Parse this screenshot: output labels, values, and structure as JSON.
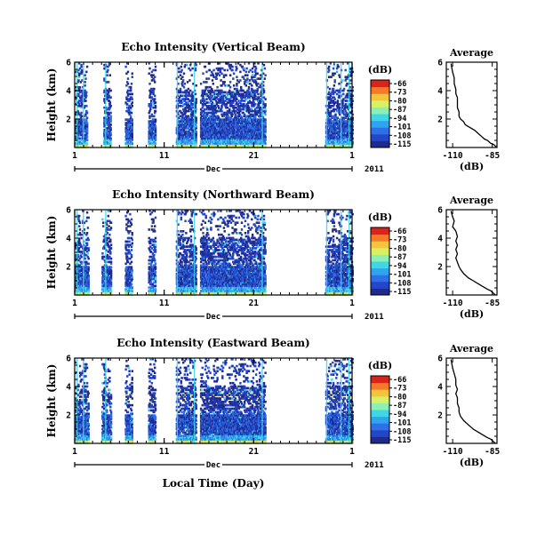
{
  "chart_data": [
    {
      "type": "heatmap",
      "title": "Echo Intensity (Vertical Beam)",
      "ylabel": "Height (km)",
      "ylim": [
        0,
        6
      ],
      "yticks": [
        2,
        4,
        6
      ],
      "xticks": [
        "1",
        "11",
        "21",
        "1"
      ],
      "month_label": "Dec",
      "year_label": "2011",
      "colorbar": {
        "unit": "(dB)",
        "ticks": [
          -66,
          -73,
          -80,
          -87,
          -94,
          -101,
          -108,
          -115
        ]
      },
      "colormap": [
        "#1f2a8c",
        "#2446c8",
        "#2f6fe8",
        "#2fa4ef",
        "#3fd6e6",
        "#8cf0b4",
        "#d8f064",
        "#f6c43c",
        "#f47a2a",
        "#d8241c"
      ],
      "active_day_ranges": [
        [
          1.0,
          2.3
        ],
        [
          4.2,
          5.0
        ],
        [
          6.6,
          7.4
        ],
        [
          9.2,
          10.0
        ],
        [
          12.3,
          14.5
        ],
        [
          15.0,
          22.2
        ],
        [
          29.0,
          32.0
        ]
      ]
    },
    {
      "type": "line",
      "title": "Average",
      "xlabel": "(dB)",
      "xlim": [
        -114,
        -82
      ],
      "xticks": [
        "-110",
        "-85"
      ],
      "ylim": [
        0,
        6
      ],
      "yticks": [
        2,
        4,
        6
      ],
      "x": [
        -111,
        -110,
        -109,
        -109,
        -108,
        -108,
        -107,
        -107,
        -107,
        -106,
        -106,
        -105,
        -103,
        -102,
        -99,
        -96,
        -94,
        -92,
        -90,
        -88,
        -86,
        -84,
        -83,
        -82
      ],
      "y": [
        5.9,
        5.3,
        4.9,
        4.5,
        4.1,
        3.8,
        3.5,
        3.1,
        2.8,
        2.5,
        2.2,
        2.0,
        1.8,
        1.6,
        1.4,
        1.2,
        1.0,
        0.8,
        0.6,
        0.5,
        0.3,
        0.2,
        0.1,
        0.0
      ]
    },
    {
      "type": "heatmap",
      "title": "Echo Intensity (Northward Beam)",
      "ylabel": "Height (km)",
      "ylim": [
        0,
        6
      ],
      "yticks": [
        2,
        4,
        6
      ],
      "xticks": [
        "1",
        "11",
        "21",
        "1"
      ],
      "month_label": "Dec",
      "year_label": "2011",
      "colorbar": {
        "unit": "(dB)",
        "ticks": [
          -66,
          -73,
          -80,
          -87,
          -94,
          -101,
          -108,
          -115
        ]
      },
      "colormap": [
        "#1f2a8c",
        "#2446c8",
        "#2f6fe8",
        "#2fa4ef",
        "#3fd6e6",
        "#8cf0b4",
        "#d8f064",
        "#f6c43c",
        "#f47a2a",
        "#d8241c"
      ],
      "active_day_ranges": [
        [
          1.0,
          2.5
        ],
        [
          4.0,
          5.0
        ],
        [
          6.6,
          7.4
        ],
        [
          9.2,
          10.0
        ],
        [
          12.3,
          14.5
        ],
        [
          15.0,
          22.2
        ],
        [
          29.0,
          32.0
        ]
      ]
    },
    {
      "type": "line",
      "title": "Average",
      "xlabel": "(dB)",
      "xlim": [
        -114,
        -82
      ],
      "xticks": [
        "-110",
        "-85"
      ],
      "ylim": [
        0,
        6
      ],
      "yticks": [
        2,
        4,
        6
      ],
      "x": [
        -111,
        -110,
        -109,
        -110,
        -108,
        -107,
        -108,
        -107,
        -108,
        -107,
        -108,
        -107,
        -106,
        -105,
        -103,
        -100,
        -97,
        -94,
        -91,
        -88,
        -86,
        -84,
        -83
      ],
      "y": [
        5.9,
        5.5,
        5.2,
        4.8,
        4.5,
        4.1,
        3.8,
        3.5,
        3.2,
        2.9,
        2.6,
        2.3,
        2.0,
        1.8,
        1.5,
        1.2,
        1.0,
        0.8,
        0.6,
        0.4,
        0.3,
        0.1,
        0.0
      ]
    },
    {
      "type": "heatmap",
      "title": "Echo Intensity (Eastward Beam)",
      "ylabel": "Height (km)",
      "ylim": [
        0,
        6
      ],
      "yticks": [
        2,
        4,
        6
      ],
      "xticks": [
        "1",
        "11",
        "21",
        "1"
      ],
      "month_label": "Dec",
      "year_label": "2011",
      "xlabel": "Local Time (Day)",
      "colorbar": {
        "unit": "(dB)",
        "ticks": [
          -66,
          -73,
          -80,
          -87,
          -94,
          -101,
          -108,
          -115
        ]
      },
      "colormap": [
        "#1f2a8c",
        "#2446c8",
        "#2f6fe8",
        "#2fa4ef",
        "#3fd6e6",
        "#8cf0b4",
        "#d8f064",
        "#f6c43c",
        "#f47a2a",
        "#d8241c"
      ],
      "active_day_ranges": [
        [
          1.0,
          2.5
        ],
        [
          4.0,
          5.0
        ],
        [
          6.6,
          7.4
        ],
        [
          9.2,
          10.0
        ],
        [
          12.3,
          14.5
        ],
        [
          15.0,
          22.2
        ],
        [
          29.0,
          32.0
        ]
      ]
    },
    {
      "type": "line",
      "title": "Average",
      "xlabel": "(dB)",
      "xlim": [
        -114,
        -82
      ],
      "xticks": [
        "-110",
        "-85"
      ],
      "ylim": [
        0,
        6
      ],
      "yticks": [
        2,
        4,
        6
      ],
      "x": [
        -111,
        -110,
        -109,
        -108,
        -108,
        -107,
        -108,
        -107,
        -107,
        -106,
        -106,
        -105,
        -103,
        -100,
        -97,
        -94,
        -91,
        -88,
        -86,
        -84,
        -83
      ],
      "y": [
        5.9,
        5.3,
        4.9,
        4.5,
        4.1,
        3.8,
        3.5,
        3.2,
        2.8,
        2.5,
        2.2,
        1.9,
        1.6,
        1.3,
        1.0,
        0.8,
        0.6,
        0.4,
        0.3,
        0.1,
        0.0
      ]
    }
  ]
}
